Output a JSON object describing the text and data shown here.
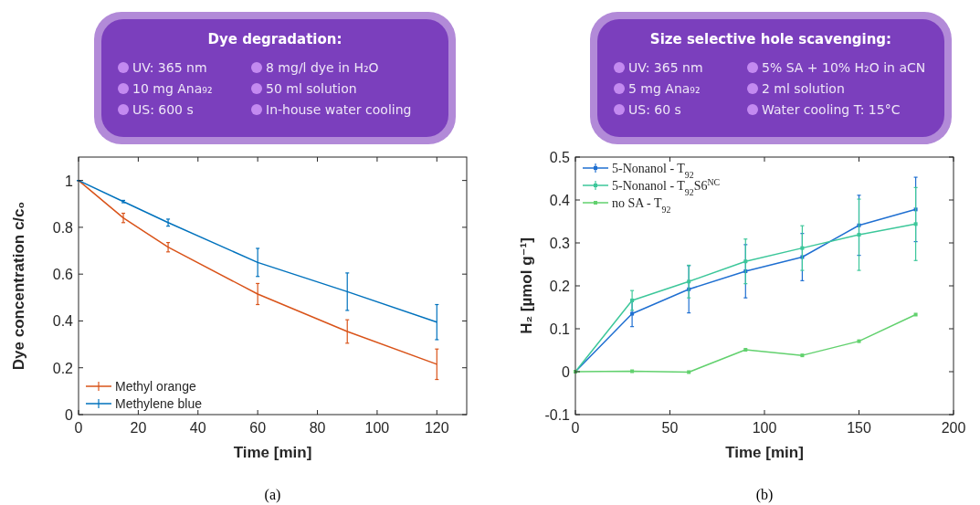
{
  "chart_data": [
    {
      "type": "other",
      "title": "Dye degradation:",
      "annotations": [
        "UV: 365 nm",
        "8 mg/l dye in H₂O",
        "10 mg Ana₉₂",
        "50 ml solution",
        "US: 600 s",
        "In-house water cooling"
      ]
    },
    {
      "type": "other",
      "title": "Size selective hole scavenging:",
      "annotations": [
        "UV: 365 nm",
        "5% SA + 10% H₂O in aCN",
        "5 mg Ana₉₂",
        "2 ml solution",
        "US: 60 s",
        "Water cooling T: 15°C"
      ]
    },
    {
      "type": "line",
      "xlabel": "Time [min]",
      "ylabel": "Dye concentration c/c₀",
      "x": [
        0,
        15,
        30,
        60,
        90,
        120
      ],
      "xlim": [
        0,
        130
      ],
      "xticks": [
        0,
        20,
        40,
        60,
        80,
        100,
        120
      ],
      "ylim": [
        0,
        1.1
      ],
      "yticks": [
        0,
        0.2,
        0.4,
        0.6,
        0.8,
        1
      ],
      "legend": "bottom left",
      "marker": "none",
      "grid": false,
      "annotations": [
        "(a)"
      ],
      "series": [
        {
          "name": "Methyl orange",
          "color": "#d95319",
          "values": [
            1,
            0.84,
            0.715,
            0.515,
            0.355,
            0.215
          ],
          "errors": [
            0,
            0.02,
            0.02,
            0.045,
            0.05,
            0.065
          ]
        },
        {
          "name": "Methylene blue",
          "color": "#0072bd",
          "values": [
            1,
            0.91,
            0.82,
            0.65,
            0.525,
            0.395
          ],
          "errors": [
            0,
            0.005,
            0.015,
            0.06,
            0.08,
            0.075
          ]
        }
      ]
    },
    {
      "type": "line",
      "xlabel": "Time [min]",
      "ylabel": "H₂ [µmol g⁻¹]",
      "x": [
        0,
        30,
        60,
        90,
        120,
        150,
        180
      ],
      "xlim": [
        0,
        200
      ],
      "xticks": [
        0,
        50,
        100,
        150,
        200
      ],
      "ylim": [
        -0.1,
        0.5
      ],
      "yticks": [
        -0.1,
        0,
        0.1,
        0.2,
        0.3,
        0.4,
        0.5
      ],
      "legend": "top left",
      "marker": "square",
      "grid": false,
      "annotations": [
        "(b)"
      ],
      "series": [
        {
          "name": "5-Nonanol - T$_{92}$",
          "color": "#1f6fd1",
          "values": [
            0,
            0.135,
            0.192,
            0.234,
            0.267,
            0.341,
            0.378
          ],
          "errors": [
            0,
            0.03,
            0.055,
            0.062,
            0.055,
            0.07,
            0.075
          ]
        },
        {
          "name": "5-Nonanol - T$_{92}$S6$^{NC}$",
          "color": "#3cc79a",
          "values": [
            0,
            0.166,
            0.21,
            0.257,
            0.288,
            0.319,
            0.344
          ],
          "errors": [
            0,
            0.023,
            0.038,
            0.052,
            0.052,
            0.083,
            0.085
          ]
        },
        {
          "name": "no SA - T$_{92}$",
          "color": "#62d16e",
          "values": [
            0,
            0.001,
            -0.001,
            0.051,
            0.038,
            0.071,
            0.133
          ]
        }
      ]
    }
  ]
}
